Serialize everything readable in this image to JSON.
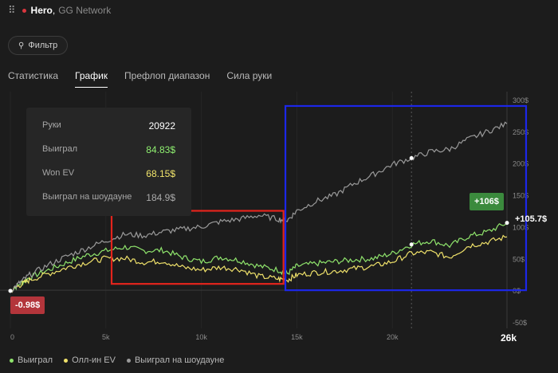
{
  "header": {
    "title": "Hero",
    "separator": ",",
    "network": "GG Network",
    "menu_icon": "grip-icon",
    "status_color": "#d9363e"
  },
  "filter": {
    "label": "Фильтр",
    "icon": "filter-icon"
  },
  "tabs": [
    {
      "label": "Статистика",
      "active": false
    },
    {
      "label": "График",
      "active": true
    },
    {
      "label": "Префлоп диапазон",
      "active": false
    },
    {
      "label": "Сила руки",
      "active": false
    }
  ],
  "tooltip": {
    "rows": [
      {
        "label": "Руки",
        "value": "20922"
      },
      {
        "label": "Выиграл",
        "value": "84.83$"
      },
      {
        "label": "Won EV",
        "value": "68.15$"
      },
      {
        "label": "Выиграл на шоудауне",
        "value": "184.9$"
      }
    ]
  },
  "badges": {
    "start": "-0.98$",
    "end": "+106$",
    "end_value_label": "+105.7$"
  },
  "chart_data": {
    "type": "line",
    "x_tick_labels": [
      "0",
      "5k",
      "10k",
      "15k",
      "20k",
      "26k"
    ],
    "x_ticks": [
      0,
      5000,
      10000,
      15000,
      20000,
      26000
    ],
    "y_tick_labels": [
      "300$",
      "250$",
      "200$",
      "150$",
      "100$",
      "50$",
      "0$",
      "-50$"
    ],
    "y_ticks": [
      300,
      250,
      200,
      150,
      100,
      50,
      0,
      -50
    ],
    "xlim": [
      0,
      26000
    ],
    "ylim": [
      -50,
      300
    ],
    "grid": "vertical",
    "legend_position": "bottom-left",
    "highlighted_x": 21000,
    "colors": {
      "won": "#8fe46c",
      "ev": "#efe16a",
      "showdown": "#9a9a9a"
    },
    "series": [
      {
        "name": "Выиграл",
        "color": "#8fe46c",
        "x": [
          0,
          500,
          1000,
          2000,
          3000,
          4000,
          5000,
          6000,
          7000,
          8000,
          9000,
          10000,
          11000,
          12000,
          13000,
          14000,
          14500,
          15000,
          16000,
          17000,
          18000,
          19000,
          20000,
          21000,
          22000,
          23000,
          24000,
          25000,
          26000
        ],
        "y": [
          -1,
          10,
          20,
          32,
          44,
          55,
          62,
          68,
          62,
          63,
          52,
          45,
          52,
          47,
          38,
          32,
          26,
          38,
          42,
          45,
          48,
          50,
          58,
          72,
          78,
          70,
          85,
          92,
          106
        ]
      },
      {
        "name": "Олл-ин EV",
        "color": "#efe16a",
        "x": [
          0,
          500,
          1000,
          2000,
          3000,
          4000,
          5000,
          6000,
          7000,
          8000,
          9000,
          10000,
          11000,
          12000,
          13000,
          14000,
          14500,
          15000,
          16000,
          17000,
          18000,
          19000,
          20000,
          21000,
          22000,
          23000,
          24000,
          25000,
          26000
        ],
        "y": [
          -1,
          8,
          16,
          26,
          36,
          44,
          50,
          50,
          44,
          46,
          36,
          32,
          36,
          33,
          22,
          18,
          16,
          24,
          28,
          30,
          34,
          38,
          45,
          58,
          60,
          52,
          70,
          76,
          84
        ]
      },
      {
        "name": "Выиграл на шоудауне",
        "color": "#9a9a9a",
        "x": [
          0,
          500,
          1000,
          2000,
          3000,
          4000,
          5000,
          6000,
          7000,
          8000,
          9000,
          10000,
          11000,
          12000,
          13000,
          14000,
          14500,
          15000,
          16000,
          17000,
          18000,
          19000,
          20000,
          21000,
          22000,
          23000,
          24000,
          25000,
          26000
        ],
        "y": [
          -1,
          12,
          24,
          40,
          54,
          66,
          78,
          88,
          86,
          92,
          96,
          100,
          108,
          112,
          118,
          112,
          110,
          125,
          140,
          150,
          168,
          182,
          198,
          208,
          218,
          222,
          238,
          250,
          262
        ]
      }
    ],
    "annotations": [
      {
        "label": "red-box",
        "x_start": 5300,
        "x_end": 14300,
        "y_start": 10,
        "y_end": 125,
        "color": "#e3241c"
      },
      {
        "label": "blue-box",
        "x_start": 14400,
        "x_end": 27000,
        "y_start": 0,
        "y_end": 290,
        "color": "#1c27e8"
      }
    ]
  },
  "legend": [
    {
      "label": "Выиграл",
      "color": "#8fe46c"
    },
    {
      "label": "Олл-ин EV",
      "color": "#efe16a"
    },
    {
      "label": "Выиграл на шоудауне",
      "color": "#9a9a9a"
    }
  ]
}
